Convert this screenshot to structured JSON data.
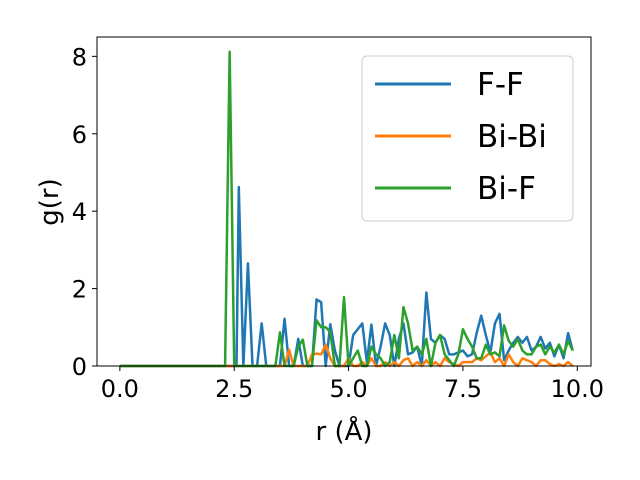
{
  "chart_data": {
    "type": "line",
    "xlabel": "r (Å)",
    "ylabel": "g(r)",
    "xlim": [
      -0.5,
      10.3
    ],
    "ylim": [
      0,
      8.5
    ],
    "xticks": [
      0.0,
      2.5,
      5.0,
      7.5,
      10.0
    ],
    "xtick_labels": [
      "0.0",
      "2.5",
      "5.0",
      "7.5",
      "10.0"
    ],
    "yticks": [
      0,
      2,
      4,
      6,
      8
    ],
    "ytick_labels": [
      "0",
      "2",
      "4",
      "6",
      "8"
    ],
    "grid": false,
    "legend_position": "top-right",
    "series": [
      {
        "name": "F-F",
        "color": "#1f77b4",
        "x": [
          0.0,
          2.55,
          2.6,
          2.7,
          2.8,
          2.9,
          3.0,
          3.1,
          3.2,
          3.3,
          3.4,
          3.5,
          3.6,
          3.7,
          3.8,
          3.9,
          4.0,
          4.1,
          4.2,
          4.3,
          4.4,
          4.5,
          4.6,
          4.7,
          4.8,
          4.9,
          5.0,
          5.1,
          5.2,
          5.3,
          5.4,
          5.5,
          5.6,
          5.7,
          5.8,
          5.9,
          6.0,
          6.1,
          6.2,
          6.3,
          6.4,
          6.5,
          6.6,
          6.7,
          6.8,
          6.9,
          7.0,
          7.1,
          7.2,
          7.3,
          7.4,
          7.5,
          7.6,
          7.7,
          7.8,
          7.9,
          8.0,
          8.1,
          8.2,
          8.3,
          8.4,
          8.5,
          8.6,
          8.7,
          8.8,
          8.9,
          9.0,
          9.1,
          9.2,
          9.3,
          9.4,
          9.5,
          9.6,
          9.7,
          9.8,
          9.9
        ],
        "y": [
          0.0,
          0.0,
          4.62,
          0.0,
          2.65,
          0.0,
          0.0,
          1.1,
          0.0,
          0.0,
          0.0,
          0.0,
          1.22,
          0.0,
          0.0,
          0.7,
          0.0,
          0.0,
          0.0,
          1.72,
          1.65,
          0.0,
          1.08,
          0.4,
          0.0,
          0.0,
          0.0,
          0.8,
          0.95,
          1.1,
          0.1,
          1.07,
          0.0,
          0.5,
          1.1,
          0.8,
          0.0,
          0.7,
          1.1,
          0.3,
          0.35,
          0.5,
          0.0,
          1.9,
          0.7,
          0.6,
          0.8,
          0.7,
          0.3,
          0.3,
          0.35,
          0.4,
          0.25,
          0.3,
          0.85,
          1.3,
          0.8,
          0.35,
          1.1,
          1.35,
          0.15,
          0.4,
          0.6,
          0.75,
          0.6,
          0.75,
          0.4,
          0.5,
          0.75,
          0.45,
          0.6,
          0.25,
          0.55,
          0.2,
          0.85,
          0.4
        ]
      },
      {
        "name": "Bi-Bi",
        "color": "#ff7f0e",
        "x": [
          0.0,
          3.5,
          3.6,
          3.7,
          3.8,
          3.9,
          4.0,
          4.1,
          4.2,
          4.3,
          4.4,
          4.5,
          4.6,
          4.7,
          4.8,
          4.9,
          5.0,
          5.1,
          5.2,
          5.3,
          5.4,
          5.5,
          5.6,
          5.7,
          5.8,
          5.9,
          6.0,
          6.1,
          6.2,
          6.3,
          6.4,
          6.5,
          6.6,
          6.7,
          6.8,
          6.9,
          7.0,
          7.1,
          7.2,
          7.3,
          7.4,
          7.5,
          7.6,
          7.7,
          7.8,
          7.9,
          8.0,
          8.1,
          8.2,
          8.3,
          8.4,
          8.5,
          8.6,
          8.7,
          8.8,
          8.9,
          9.0,
          9.1,
          9.2,
          9.3,
          9.4,
          9.5,
          9.6,
          9.7,
          9.8,
          9.9
        ],
        "y": [
          0.0,
          0.0,
          0.0,
          0.42,
          0.0,
          0.0,
          0.0,
          0.0,
          0.3,
          0.32,
          0.3,
          0.55,
          0.2,
          0.0,
          0.0,
          0.0,
          0.2,
          0.0,
          0.0,
          0.1,
          0.0,
          0.2,
          0.0,
          0.0,
          0.1,
          0.0,
          0.1,
          0.0,
          0.15,
          0.2,
          0.0,
          0.1,
          0.0,
          0.15,
          0.0,
          0.1,
          0.0,
          0.2,
          0.1,
          0.05,
          0.0,
          0.1,
          0.1,
          0.1,
          0.2,
          0.15,
          0.25,
          0.35,
          0.1,
          0.2,
          0.0,
          0.3,
          0.1,
          0.0,
          0.2,
          0.15,
          0.1,
          0.0,
          0.15,
          0.15,
          0.05,
          0.0,
          0.05,
          0.0,
          0.1,
          0.0
        ]
      },
      {
        "name": "Bi-F",
        "color": "#2ca02c",
        "x": [
          0.0,
          2.3,
          2.4,
          2.5,
          3.3,
          3.4,
          3.5,
          3.6,
          3.7,
          3.8,
          3.9,
          4.0,
          4.1,
          4.2,
          4.3,
          4.4,
          4.5,
          4.6,
          4.7,
          4.8,
          4.9,
          5.0,
          5.1,
          5.2,
          5.3,
          5.4,
          5.5,
          5.6,
          5.7,
          5.8,
          5.9,
          6.0,
          6.1,
          6.2,
          6.3,
          6.4,
          6.5,
          6.6,
          6.7,
          6.8,
          6.9,
          7.0,
          7.1,
          7.2,
          7.3,
          7.4,
          7.5,
          7.6,
          7.7,
          7.8,
          7.9,
          8.0,
          8.1,
          8.2,
          8.3,
          8.4,
          8.5,
          8.6,
          8.7,
          8.8,
          8.9,
          9.0,
          9.1,
          9.2,
          9.3,
          9.4,
          9.5,
          9.6,
          9.7,
          9.8,
          9.9
        ],
        "y": [
          0.0,
          0.0,
          8.12,
          0.0,
          0.0,
          0.0,
          0.87,
          0.0,
          0.0,
          0.0,
          0.5,
          0.68,
          0.0,
          0.0,
          1.18,
          1.0,
          1.0,
          0.88,
          0.0,
          0.0,
          1.78,
          0.0,
          0.2,
          0.4,
          0.0,
          0.0,
          0.5,
          0.3,
          0.2,
          0.0,
          0.1,
          0.8,
          0.2,
          1.52,
          1.1,
          0.4,
          0.5,
          0.3,
          0.7,
          0.0,
          0.6,
          0.8,
          0.3,
          0.15,
          0.0,
          0.3,
          0.95,
          0.7,
          0.5,
          0.2,
          0.2,
          0.55,
          0.3,
          0.35,
          0.25,
          1.05,
          0.65,
          0.5,
          0.7,
          0.4,
          0.3,
          0.3,
          0.5,
          0.55,
          0.3,
          0.5,
          0.35,
          0.55,
          0.3,
          0.65,
          0.4
        ]
      }
    ]
  }
}
